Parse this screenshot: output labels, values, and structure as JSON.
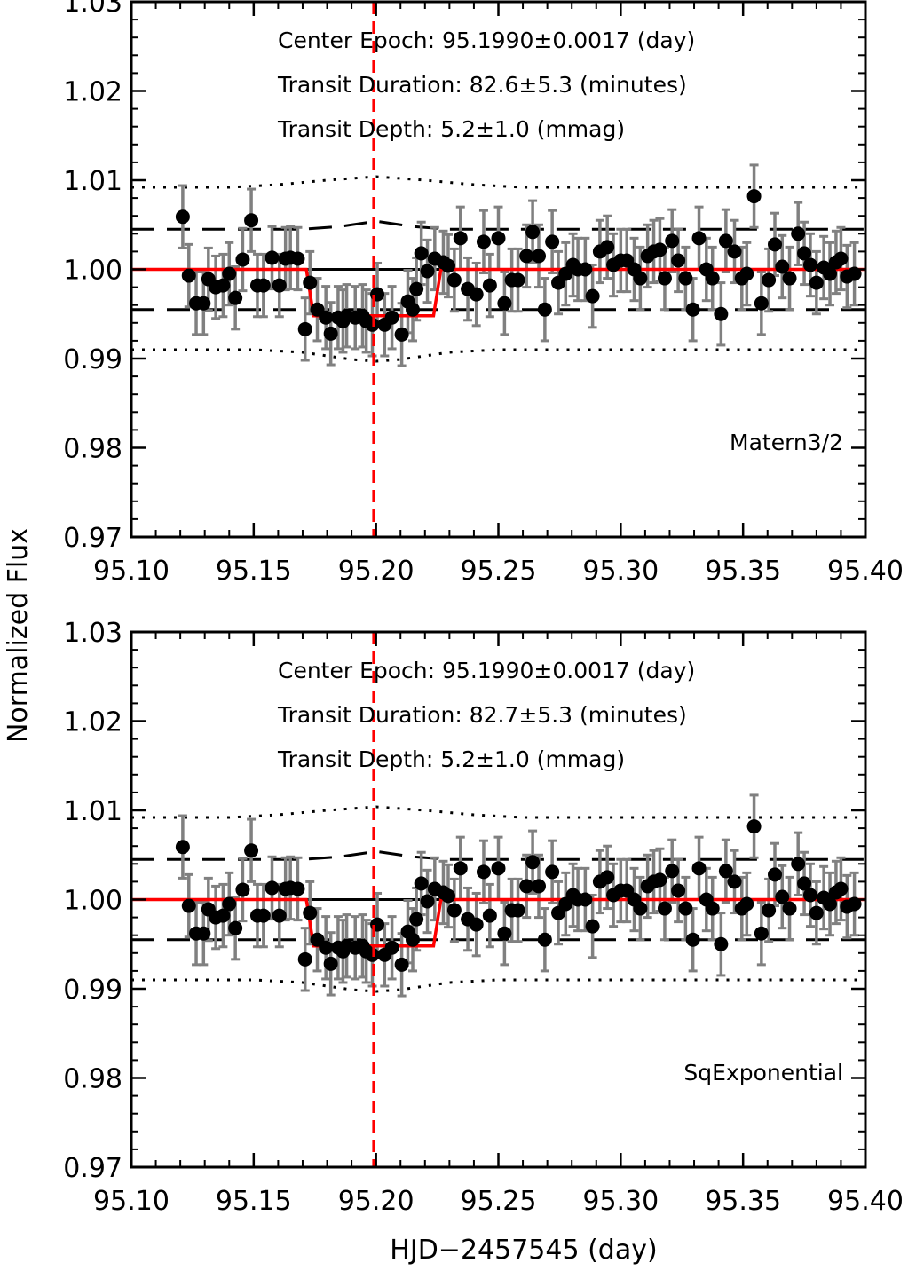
{
  "figure": {
    "ylabel": "Normalized Flux",
    "xlabel": "HJD−2457545 (day)"
  },
  "chart_data": [
    {
      "type": "scatter",
      "model_label": "Matern3/2",
      "annotations": [
        "Center Epoch: 95.1990±0.0017 (day)",
        "Transit Duration: 82.6±5.3 (minutes)",
        "Transit Depth: 5.2±1.0 (mmag)"
      ],
      "xlim": [
        95.1,
        95.4
      ],
      "ylim": [
        0.97,
        1.03
      ],
      "xticks": [
        "95.10",
        "95.15",
        "95.20",
        "95.25",
        "95.30",
        "95.35",
        "95.40"
      ],
      "yticks": [
        "0.97",
        "0.98",
        "0.99",
        "1.00",
        "1.01",
        "1.02",
        "1.03"
      ],
      "center_epoch": 95.199,
      "transit_model": {
        "baseline": 1.0,
        "depth_flux": 0.9948,
        "ingress": [
          95.1715,
          95.1745
        ],
        "egress": [
          95.2235,
          95.2265
        ]
      },
      "colors": {
        "points": "#000000",
        "errorbars": "#808080",
        "model": "#ff0000",
        "epoch_line": "#ff0000"
      }
    },
    {
      "type": "scatter",
      "model_label": "SqExponential",
      "annotations": [
        "Center Epoch: 95.1990±0.0017 (day)",
        "Transit Duration: 82.7±5.3 (minutes)",
        "Transit Depth: 5.2±1.0 (mmag)"
      ],
      "xlim": [
        95.1,
        95.4
      ],
      "ylim": [
        0.97,
        1.03
      ],
      "xticks": [
        "95.10",
        "95.15",
        "95.20",
        "95.25",
        "95.30",
        "95.35",
        "95.40"
      ],
      "yticks": [
        "0.97",
        "0.98",
        "0.99",
        "1.00",
        "1.01",
        "1.02",
        "1.03"
      ],
      "center_epoch": 95.199,
      "transit_model": {
        "baseline": 1.0,
        "depth_flux": 0.9948,
        "ingress": [
          95.1715,
          95.1745
        ],
        "egress": [
          95.2235,
          95.2265
        ]
      },
      "colors": {
        "points": "#000000",
        "errorbars": "#808080",
        "model": "#ff0000",
        "epoch_line": "#ff0000"
      }
    }
  ],
  "shared_series": {
    "errorbar": 0.0035,
    "x": [
      95.121,
      95.1235,
      95.1265,
      95.1295,
      95.1315,
      95.1345,
      95.1375,
      95.14,
      95.1425,
      95.1455,
      95.149,
      95.1515,
      95.154,
      95.1575,
      95.1605,
      95.163,
      95.165,
      95.168,
      95.171,
      95.173,
      95.176,
      95.1795,
      95.1815,
      95.1845,
      95.1865,
      95.188,
      95.1915,
      95.1945,
      95.196,
      95.1985,
      95.2005,
      95.2035,
      95.2065,
      95.2105,
      95.213,
      95.215,
      95.2165,
      95.2185,
      95.221,
      95.224,
      95.2275,
      95.2295,
      95.232,
      95.2345,
      95.2375,
      95.241,
      95.244,
      95.2465,
      95.25,
      95.2525,
      95.2555,
      95.258,
      95.2615,
      95.264,
      95.2665,
      95.269,
      95.272,
      95.2745,
      95.2775,
      95.2805,
      95.2825,
      95.2855,
      95.2885,
      95.2915,
      95.2945,
      95.297,
      95.3,
      95.3025,
      95.3055,
      95.308,
      95.311,
      95.3135,
      95.316,
      95.318,
      95.321,
      95.3235,
      95.3265,
      95.3295,
      95.332,
      95.335,
      95.3375,
      95.341,
      95.343,
      95.3465,
      95.3495,
      95.3515,
      95.3545,
      95.3575,
      95.3605,
      95.363,
      95.366,
      95.369,
      95.3725,
      95.375,
      95.3775,
      95.38,
      95.383,
      95.3855,
      95.388,
      95.39,
      95.3925,
      95.3955
    ],
    "y": [
      1.0059,
      0.9993,
      0.9962,
      0.9962,
      0.9989,
      0.998,
      0.9982,
      0.9995,
      0.9968,
      1.0011,
      1.0055,
      0.9982,
      0.9982,
      1.0013,
      0.9982,
      1.0012,
      1.0013,
      1.0012,
      0.9933,
      0.9985,
      0.9955,
      0.9946,
      0.9928,
      0.9946,
      0.9942,
      0.9948,
      0.9946,
      0.9948,
      0.9942,
      0.9938,
      0.9972,
      0.9938,
      0.9946,
      0.9927,
      0.9964,
      0.9955,
      0.9978,
      1.0018,
      0.9998,
      1.0012,
      1.0008,
      1.0004,
      0.9988,
      1.0035,
      0.9978,
      0.9972,
      1.0031,
      0.9982,
      1.0035,
      0.9962,
      0.9988,
      0.9988,
      1.0015,
      1.0042,
      1.0015,
      0.9955,
      1.0031,
      0.9985,
      0.9995,
      1.0005,
      1.0,
      1.0,
      0.997,
      1.002,
      1.0025,
      1.0005,
      1.001,
      1.001,
      1.0,
      0.999,
      1.0015,
      1.002,
      1.0022,
      0.999,
      1.0032,
      1.001,
      0.999,
      0.9955,
      1.0035,
      1.0,
      0.999,
      0.995,
      1.0032,
      1.002,
      0.999,
      0.9995,
      1.0082,
      0.9962,
      0.9988,
      1.0028,
      1.0003,
      0.999,
      1.004,
      1.0018,
      1.0005,
      0.9985,
      1.0002,
      0.9995,
      1.0008,
      1.0012,
      0.9992,
      0.9995
    ],
    "mean_band": [
      [
        95.1,
        1.0045
      ],
      [
        95.17,
        1.0045
      ],
      [
        95.185,
        1.0048
      ],
      [
        95.2,
        1.0054
      ],
      [
        95.215,
        1.0048
      ],
      [
        95.23,
        1.0045
      ],
      [
        95.4,
        1.0045
      ]
    ],
    "mean_band_low": [
      [
        95.1,
        0.9955
      ],
      [
        95.4,
        0.9955
      ]
    ],
    "sigma_band": [
      [
        95.1,
        1.0092
      ],
      [
        95.14,
        1.0092
      ],
      [
        95.16,
        1.0095
      ],
      [
        95.18,
        1.01
      ],
      [
        95.2,
        1.0104
      ],
      [
        95.22,
        1.01
      ],
      [
        95.24,
        1.0095
      ],
      [
        95.26,
        1.0092
      ],
      [
        95.4,
        1.0092
      ]
    ],
    "sigma_band_low": [
      [
        95.1,
        0.991
      ],
      [
        95.15,
        0.991
      ],
      [
        95.17,
        0.9907
      ],
      [
        95.19,
        0.9899
      ],
      [
        95.2,
        0.9897
      ],
      [
        95.21,
        0.9899
      ],
      [
        95.23,
        0.9907
      ],
      [
        95.25,
        0.991
      ],
      [
        95.4,
        0.991
      ]
    ]
  }
}
